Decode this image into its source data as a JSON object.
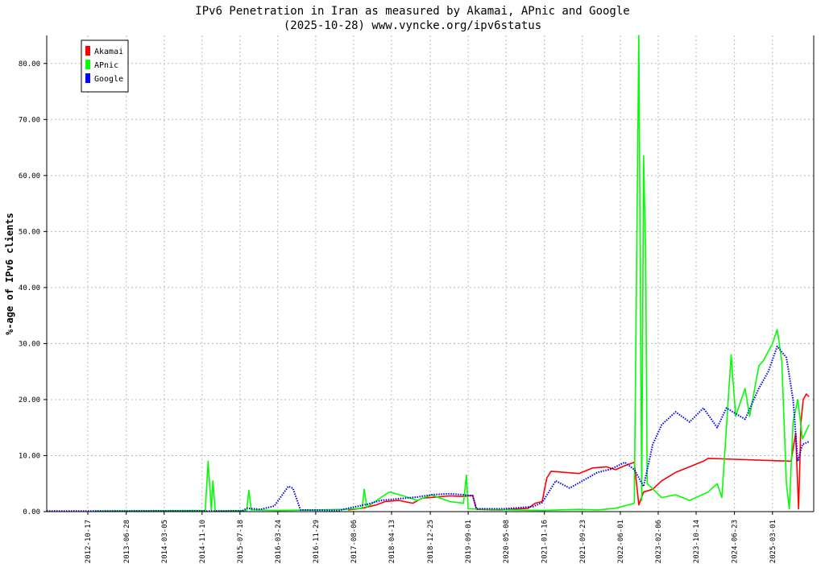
{
  "chart_data": {
    "type": "line",
    "title": "IPv6 Penetration in Iran as measured by Akamai, APnic and Google",
    "subtitle": "(2025-10-28) www.vyncke.org/ipv6status",
    "ylabel": "%-age of IPv6 clients",
    "xlabel": "",
    "ylim": [
      0,
      85
    ],
    "xlim": [
      "2012-01-20",
      "2025-11-28"
    ],
    "grid": true,
    "legend_position": "top-left",
    "y_ticks": [
      "0.00",
      "10.00",
      "20.00",
      "30.00",
      "40.00",
      "50.00",
      "60.00",
      "70.00",
      "80.00"
    ],
    "x_ticks": [
      "2012-10-17",
      "2013-06-28",
      "2014-03-05",
      "2014-11-10",
      "2015-07-18",
      "2016-03-24",
      "2016-11-29",
      "2017-08-06",
      "2018-04-13",
      "2018-12-25",
      "2019-09-01",
      "2020-05-08",
      "2021-01-16",
      "2021-09-23",
      "2022-06-01",
      "2023-02-06",
      "2023-10-14",
      "2024-06-23",
      "2025-03-01"
    ],
    "series": [
      {
        "name": "Akamai",
        "color": "#ff0000",
        "style": "solid",
        "points": [
          [
            "2017-07-01",
            0.3
          ],
          [
            "2017-10-01",
            0.6
          ],
          [
            "2018-01-01",
            1.2
          ],
          [
            "2018-03-01",
            1.8
          ],
          [
            "2018-06-01",
            2.0
          ],
          [
            "2018-09-01",
            1.5
          ],
          [
            "2018-11-01",
            2.4
          ],
          [
            "2019-02-01",
            2.6
          ],
          [
            "2019-05-01",
            2.8
          ],
          [
            "2019-08-01",
            2.7
          ],
          [
            "2019-10-01",
            2.9
          ],
          [
            "2019-10-25",
            0.4
          ],
          [
            "2020-04-01",
            0.3
          ],
          [
            "2020-10-01",
            0.6
          ],
          [
            "2020-11-15",
            1.5
          ],
          [
            "2021-01-01",
            1.8
          ],
          [
            "2021-02-01",
            6.0
          ],
          [
            "2021-03-01",
            7.2
          ],
          [
            "2021-06-01",
            7.0
          ],
          [
            "2021-09-01",
            6.8
          ],
          [
            "2021-12-01",
            7.8
          ],
          [
            "2022-03-01",
            8.0
          ],
          [
            "2022-05-01",
            7.5
          ],
          [
            "2022-07-01",
            8.2
          ],
          [
            "2022-09-01",
            8.8
          ],
          [
            "2022-10-01",
            1.2
          ],
          [
            "2022-11-01",
            3.5
          ],
          [
            "2023-01-01",
            4.0
          ],
          [
            "2023-03-01",
            5.5
          ],
          [
            "2023-06-01",
            7.0
          ],
          [
            "2023-09-01",
            8.0
          ],
          [
            "2023-12-01",
            9.0
          ],
          [
            "2024-01-01",
            9.5
          ],
          [
            "2025-07-01",
            9.0
          ],
          [
            "2025-08-01",
            14.0
          ],
          [
            "2025-08-20",
            0.5
          ],
          [
            "2025-09-05",
            16.0
          ],
          [
            "2025-09-20",
            20.0
          ],
          [
            "2025-10-10",
            21.0
          ],
          [
            "2025-10-28",
            20.5
          ]
        ]
      },
      {
        "name": "APnic",
        "color": "#00ff00",
        "style": "solid",
        "points": [
          [
            "2012-12-01",
            0.1
          ],
          [
            "2014-12-01",
            0.2
          ],
          [
            "2014-12-20",
            9.0
          ],
          [
            "2015-01-10",
            0.2
          ],
          [
            "2015-01-20",
            5.5
          ],
          [
            "2015-02-05",
            0.1
          ],
          [
            "2015-09-01",
            0.2
          ],
          [
            "2015-09-15",
            3.8
          ],
          [
            "2015-10-01",
            0.3
          ],
          [
            "2016-04-01",
            0.2
          ],
          [
            "2017-06-01",
            0.4
          ],
          [
            "2017-10-01",
            0.6
          ],
          [
            "2017-10-15",
            4.0
          ],
          [
            "2017-11-01",
            0.8
          ],
          [
            "2018-02-01",
            2.5
          ],
          [
            "2018-04-01",
            3.5
          ],
          [
            "2018-07-01",
            2.8
          ],
          [
            "2018-10-01",
            2.0
          ],
          [
            "2019-01-01",
            3.0
          ],
          [
            "2019-05-01",
            1.8
          ],
          [
            "2019-08-01",
            1.5
          ],
          [
            "2019-08-20",
            6.5
          ],
          [
            "2019-09-01",
            0.5
          ],
          [
            "2020-06-01",
            0.3
          ],
          [
            "2021-01-01",
            0.2
          ],
          [
            "2021-09-01",
            0.4
          ],
          [
            "2022-01-01",
            0.3
          ],
          [
            "2022-05-01",
            0.6
          ],
          [
            "2022-09-01",
            1.5
          ],
          [
            "2022-10-01",
            85.0
          ],
          [
            "2022-10-20",
            2.0
          ],
          [
            "2022-11-01",
            63.5
          ],
          [
            "2022-11-15",
            46.0
          ],
          [
            "2022-11-25",
            5.0
          ],
          [
            "2023-03-01",
            2.5
          ],
          [
            "2023-06-01",
            3.0
          ],
          [
            "2023-09-01",
            2.0
          ],
          [
            "2024-01-01",
            3.5
          ],
          [
            "2024-03-01",
            5.0
          ],
          [
            "2024-04-01",
            2.5
          ],
          [
            "2024-06-01",
            28.0
          ],
          [
            "2024-07-01",
            17.0
          ],
          [
            "2024-09-01",
            22.0
          ],
          [
            "2024-10-01",
            17.0
          ],
          [
            "2024-12-01",
            26.0
          ],
          [
            "2025-01-01",
            27.0
          ],
          [
            "2025-03-01",
            30.0
          ],
          [
            "2025-04-01",
            32.5
          ],
          [
            "2025-05-01",
            27.0
          ],
          [
            "2025-06-01",
            5.0
          ],
          [
            "2025-06-20",
            0.5
          ],
          [
            "2025-07-15",
            16.0
          ],
          [
            "2025-08-15",
            20.0
          ],
          [
            "2025-09-15",
            13.0
          ],
          [
            "2025-10-28",
            15.5
          ]
        ]
      },
      {
        "name": "Google",
        "color": "#0000ff",
        "style": "dotted",
        "points": [
          [
            "2012-01-20",
            0.1
          ],
          [
            "2015-08-01",
            0.1
          ],
          [
            "2015-09-01",
            0.6
          ],
          [
            "2015-12-01",
            0.4
          ],
          [
            "2016-03-01",
            1.0
          ],
          [
            "2016-06-01",
            4.5
          ],
          [
            "2016-07-01",
            4.2
          ],
          [
            "2016-08-20",
            0.3
          ],
          [
            "2017-05-01",
            0.2
          ],
          [
            "2017-07-01",
            0.6
          ],
          [
            "2017-11-01",
            1.3
          ],
          [
            "2018-02-01",
            2.0
          ],
          [
            "2018-06-01",
            2.3
          ],
          [
            "2018-10-01",
            2.6
          ],
          [
            "2019-01-01",
            3.0
          ],
          [
            "2019-05-01",
            3.2
          ],
          [
            "2019-08-01",
            3.0
          ],
          [
            "2019-10-01",
            2.8
          ],
          [
            "2019-10-25",
            0.5
          ],
          [
            "2020-05-01",
            0.5
          ],
          [
            "2020-11-01",
            0.9
          ],
          [
            "2021-01-01",
            1.6
          ],
          [
            "2021-04-01",
            5.5
          ],
          [
            "2021-07-01",
            4.2
          ],
          [
            "2021-10-01",
            5.6
          ],
          [
            "2022-01-01",
            7.0
          ],
          [
            "2022-04-01",
            7.6
          ],
          [
            "2022-07-01",
            8.8
          ],
          [
            "2022-09-01",
            7.5
          ],
          [
            "2022-11-01",
            4.5
          ],
          [
            "2023-01-01",
            12.0
          ],
          [
            "2023-03-01",
            15.5
          ],
          [
            "2023-06-01",
            17.8
          ],
          [
            "2023-09-01",
            16.0
          ],
          [
            "2023-12-01",
            18.5
          ],
          [
            "2024-03-01",
            15.0
          ],
          [
            "2024-05-01",
            18.5
          ],
          [
            "2024-07-01",
            17.5
          ],
          [
            "2024-09-01",
            16.5
          ],
          [
            "2024-12-01",
            22.0
          ],
          [
            "2025-02-01",
            25.0
          ],
          [
            "2025-04-01",
            29.5
          ],
          [
            "2025-06-01",
            27.5
          ],
          [
            "2025-07-15",
            20.0
          ],
          [
            "2025-08-15",
            9.0
          ],
          [
            "2025-09-15",
            12.0
          ],
          [
            "2025-10-28",
            12.5
          ]
        ]
      }
    ]
  }
}
